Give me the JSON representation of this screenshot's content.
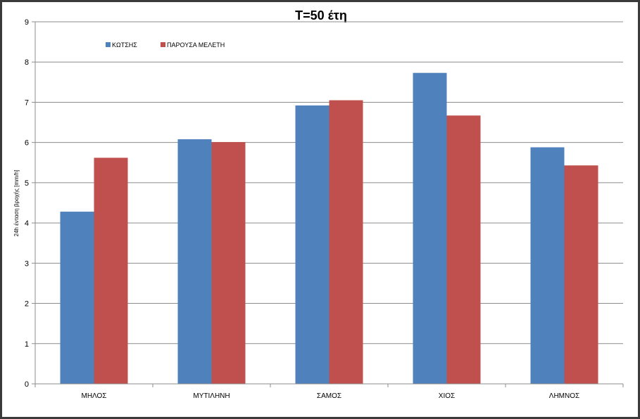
{
  "chart_data": {
    "type": "bar",
    "title": "T=50 έτη",
    "ylabel": "24h ένταση βροχής [mm/h]",
    "xlabel": "",
    "categories": [
      "ΜΗΛΟΣ",
      "ΜΥΤΙΛΗΝΗ",
      "ΣΑΜΟΣ",
      "ΧΙΟΣ",
      "ΛΗΜΝΟΣ"
    ],
    "series": [
      {
        "name": "ΚΩΤΣΗΣ",
        "color": "#4f81bd",
        "values": [
          4.28,
          6.08,
          6.92,
          7.73,
          5.88
        ]
      },
      {
        "name": "ΠΑΡΟΥΣΑ ΜΕΛΕΤΗ",
        "color": "#c0504d",
        "values": [
          5.62,
          6.01,
          7.05,
          6.67,
          5.43
        ]
      }
    ],
    "ylim": [
      0,
      9
    ],
    "yticks": [
      "0",
      "1",
      "2",
      "3",
      "4",
      "5",
      "6",
      "7",
      "8",
      "9"
    ],
    "grid": true,
    "legend": "top-left"
  }
}
